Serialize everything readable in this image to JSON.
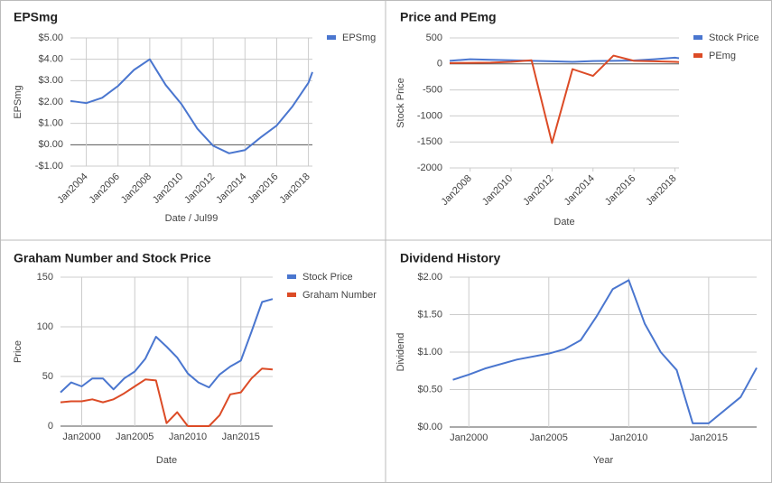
{
  "chart_data": [
    {
      "type": "line",
      "title": "EPSmg",
      "x_label": "Date / Jul99",
      "y_label": "EPSmg",
      "legend": "right",
      "rotate_x_labels": true,
      "xgrid": true,
      "x": [
        2003,
        2004,
        2005,
        2006,
        2007,
        2008,
        2009,
        2010,
        2011,
        2012,
        2013,
        2014,
        2015,
        2016,
        2017,
        2018,
        2018.25
      ],
      "series": [
        {
          "name": "EPSmg",
          "color": "#4a76cf",
          "values": [
            2.05,
            1.95,
            2.2,
            2.75,
            3.5,
            4.0,
            2.8,
            1.9,
            0.75,
            -0.05,
            -0.4,
            -0.25,
            0.35,
            0.9,
            1.8,
            2.9,
            3.4
          ]
        }
      ],
      "xlim": [
        2003,
        2018.25
      ],
      "ylim": [
        -1,
        5
      ],
      "xticks": [
        {
          "value": 2004,
          "label": "Jan2004"
        },
        {
          "value": 2006,
          "label": "Jan2006"
        },
        {
          "value": 2008,
          "label": "Jan2008"
        },
        {
          "value": 2010,
          "label": "Jan2010"
        },
        {
          "value": 2012,
          "label": "Jan2012"
        },
        {
          "value": 2014,
          "label": "Jan2014"
        },
        {
          "value": 2016,
          "label": "Jan2016"
        },
        {
          "value": 2018,
          "label": "Jan2018"
        }
      ],
      "yticks": [
        {
          "value": -1,
          "label": "-$1.00"
        },
        {
          "value": 0,
          "label": "$0.00"
        },
        {
          "value": 1,
          "label": "$1.00"
        },
        {
          "value": 2,
          "label": "$2.00"
        },
        {
          "value": 3,
          "label": "$3.00"
        },
        {
          "value": 4,
          "label": "$4.00"
        },
        {
          "value": 5,
          "label": "$5.00"
        }
      ]
    },
    {
      "type": "line",
      "title": "Price and PEmg",
      "x_label": "Date",
      "y_label": "Stock Price",
      "legend": "right",
      "rotate_x_labels": true,
      "xgrid": false,
      "x": [
        2007,
        2008,
        2009,
        2010,
        2011,
        2012,
        2013,
        2014,
        2015,
        2016,
        2017,
        2018,
        2018.2
      ],
      "series": [
        {
          "name": "Stock Price",
          "color": "#4a76cf",
          "values": [
            60,
            90,
            80,
            70,
            60,
            50,
            40,
            55,
            60,
            65,
            90,
            120,
            110
          ]
        },
        {
          "name": "PEmg",
          "color": "#dc4b26",
          "values": [
            15,
            20,
            25,
            40,
            70,
            -1520,
            -100,
            -230,
            160,
            60,
            50,
            40,
            35
          ]
        }
      ],
      "xlim": [
        2007,
        2018.2
      ],
      "ylim": [
        -2000,
        500
      ],
      "xticks": [
        {
          "value": 2008,
          "label": "Jan2008"
        },
        {
          "value": 2010,
          "label": "Jan2010"
        },
        {
          "value": 2012,
          "label": "Jan2012"
        },
        {
          "value": 2014,
          "label": "Jan2014"
        },
        {
          "value": 2016,
          "label": "Jan2016"
        },
        {
          "value": 2018,
          "label": "Jan2018"
        }
      ],
      "yticks": [
        -2000,
        -1500,
        -1000,
        -500,
        0,
        500
      ]
    },
    {
      "type": "line",
      "title": "Graham Number and Stock Price",
      "x_label": "Date",
      "y_label": "Price",
      "legend": "right",
      "rotate_x_labels": false,
      "xgrid": true,
      "x": [
        1998,
        1999,
        2000,
        2001,
        2002,
        2003,
        2004,
        2005,
        2006,
        2007,
        2008,
        2009,
        2010,
        2011,
        2012,
        2013,
        2014,
        2015,
        2016,
        2017,
        2018
      ],
      "series": [
        {
          "name": "Stock Price",
          "color": "#4a76cf",
          "values": [
            34,
            44,
            40,
            48,
            48,
            37,
            48,
            55,
            68,
            90,
            80,
            69,
            53,
            44,
            39,
            52,
            60,
            66,
            95,
            125,
            128
          ]
        },
        {
          "name": "Graham Number",
          "color": "#dc4b26",
          "values": [
            24,
            25,
            25,
            27,
            24,
            27,
            33,
            40,
            47,
            46,
            3,
            14,
            0,
            0,
            0,
            11,
            32,
            34,
            48,
            58,
            57
          ]
        }
      ],
      "xlim": [
        1998,
        2018
      ],
      "ylim": [
        0,
        150
      ],
      "xticks": [
        {
          "value": 2000,
          "label": "Jan2000"
        },
        {
          "value": 2005,
          "label": "Jan2005"
        },
        {
          "value": 2010,
          "label": "Jan2010"
        },
        {
          "value": 2015,
          "label": "Jan2015"
        }
      ],
      "yticks": [
        0,
        50,
        100,
        150
      ]
    },
    {
      "type": "line",
      "title": "Dividend History",
      "x_label": "Year",
      "y_label": "Dividend",
      "rotate_x_labels": false,
      "xgrid": true,
      "x": [
        1999,
        2000,
        2001,
        2003,
        2005,
        2006,
        2007,
        2008,
        2009,
        2010,
        2011,
        2012,
        2013,
        2014,
        2015,
        2017,
        2018
      ],
      "series": [
        {
          "color": "#4a76cf",
          "values": [
            0.63,
            0.7,
            0.78,
            0.9,
            0.98,
            1.04,
            1.16,
            1.48,
            1.84,
            1.96,
            1.38,
            1.0,
            0.76,
            0.05,
            0.05,
            0.4,
            0.79
          ]
        }
      ],
      "xlim": [
        1998.8,
        2018
      ],
      "ylim": [
        0,
        2
      ],
      "xticks": [
        {
          "value": 2000,
          "label": "Jan2000"
        },
        {
          "value": 2005,
          "label": "Jan2005"
        },
        {
          "value": 2010,
          "label": "Jan2010"
        },
        {
          "value": 2015,
          "label": "Jan2015"
        }
      ],
      "yticks": [
        {
          "value": 0,
          "label": "$0.00"
        },
        {
          "value": 0.5,
          "label": "$0.50"
        },
        {
          "value": 1,
          "label": "$1.00"
        },
        {
          "value": 1.5,
          "label": "$1.50"
        },
        {
          "value": 2,
          "label": "$2.00"
        }
      ]
    }
  ]
}
